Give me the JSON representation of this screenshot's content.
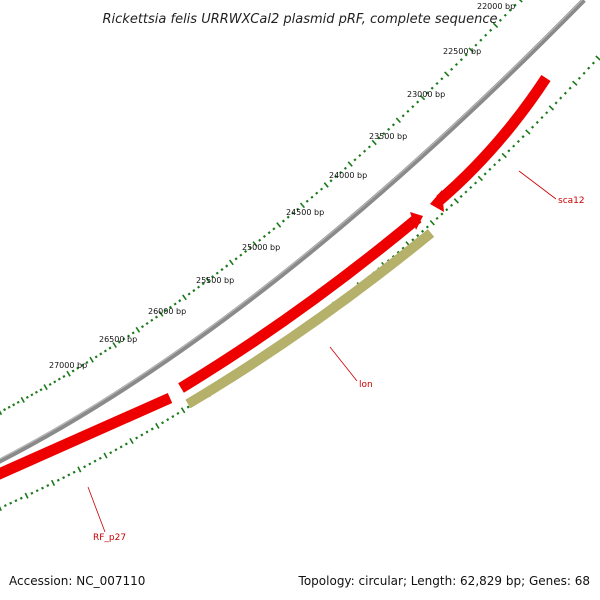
{
  "title": "Rickettsia felis URRWXCal2 plasmid pRF, complete sequence",
  "footer": {
    "accession": "Accession: NC_007110",
    "summary": "Topology: circular; Length: 62,829 bp; Genes: 68"
  },
  "colors": {
    "backbone": "#8a8a8a",
    "gene_forward": "#ee0000",
    "gene_other": "#b5b06a",
    "tick": "#1a7a1a",
    "label_line": "#cc0000"
  },
  "tick_labels": [
    "22000 bp",
    "22500 bp",
    "23000 bp",
    "23500 bp",
    "24000 bp",
    "24500 bp",
    "25000 bp",
    "25500 bp",
    "26000 bp",
    "26500 bp",
    "27000 bp"
  ],
  "genes": [
    {
      "name": "sca12",
      "color": "gene_forward"
    },
    {
      "name": "lon",
      "color": "gene_other"
    },
    {
      "name": "RF_p27",
      "color": "gene_forward"
    }
  ]
}
